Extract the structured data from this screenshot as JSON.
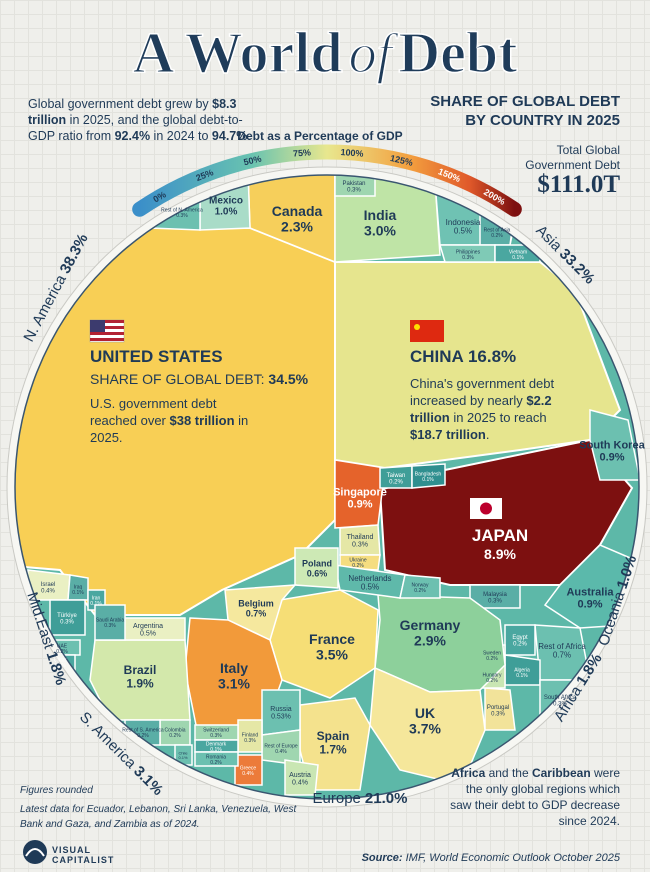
{
  "header": {
    "title_start": "A World",
    "title_of": "of",
    "title_end": "Debt",
    "intro": [
      "Global government debt grew by ",
      "$8.3 trillion",
      " in 2025, and the global debt-to-GDP ratio from ",
      "92.4%",
      " in 2024 to ",
      "94.7%",
      "."
    ],
    "subtitle": [
      "SHARE OF GLOBAL DEBT",
      "BY COUNTRY IN 2025"
    ],
    "total_label": [
      "Total Global",
      "Government Debt"
    ],
    "total_value": "$111.0T"
  },
  "scale": {
    "title": "Debt as a Percentage of GDP",
    "labels": [
      "0%",
      "25%",
      "50%",
      "75%",
      "100%",
      "125%",
      "150%",
      "200%"
    ]
  },
  "regions": [
    {
      "name": "N. America",
      "share": "38.3%"
    },
    {
      "name": "Asia",
      "share": "33.2%"
    },
    {
      "name": "Oceania",
      "share": "1.0%"
    },
    {
      "name": "Africa",
      "share": "1.8%"
    },
    {
      "name": "Europe",
      "share": "21.0%"
    },
    {
      "name": "S. America",
      "share": "3.1%"
    },
    {
      "name": "Mid.East",
      "share": "1.8%"
    }
  ],
  "highlights": {
    "us": {
      "name": "UNITED STATES",
      "share_label": "SHARE OF GLOBAL DEBT: ",
      "share": "34.5%",
      "note": [
        "U.S. government debt reached over ",
        "$38 trillion",
        " in 2025."
      ]
    },
    "china": {
      "name": "CHINA ",
      "share": "16.8%",
      "note": [
        "China's government debt increased by nearly ",
        "$2.2 trillion",
        " in 2025 to reach ",
        "$18.7 trillion",
        "."
      ]
    },
    "japan": {
      "name": "JAPAN",
      "share": "8.9%"
    }
  },
  "cells": [
    {
      "name": "Canada",
      "share": "2.3%"
    },
    {
      "name": "Mexico",
      "share": "1.0%"
    },
    {
      "name": "Rest of N. America",
      "share": "0.3%"
    },
    {
      "name": "India",
      "share": "3.0%"
    },
    {
      "name": "Pakistan",
      "share": "0.3%"
    },
    {
      "name": "Indonesia",
      "share": "0.5%"
    },
    {
      "name": "Rest of Asia",
      "share": "0.2%"
    },
    {
      "name": "Philippines",
      "share": "0.3%"
    },
    {
      "name": "Vietnam",
      "share": "0.1%"
    },
    {
      "name": "South Korea",
      "share": "0.9%"
    },
    {
      "name": "Singapore",
      "share": "0.9%"
    },
    {
      "name": "Taiwan",
      "share": "0.2%"
    },
    {
      "name": "Bangladesh",
      "share": "0.1%"
    },
    {
      "name": "Thailand",
      "share": "0.3%"
    },
    {
      "name": "Ukraine",
      "share": "0.2%"
    },
    {
      "name": "Malaysia",
      "share": "0.3%"
    },
    {
      "name": "Australia",
      "share": "0.9%"
    },
    {
      "name": "Rest of Africa",
      "share": "0.7%"
    },
    {
      "name": "Egypt",
      "share": "0.2%"
    },
    {
      "name": "Algeria",
      "share": "0.1%"
    },
    {
      "name": "South Africa",
      "share": "0.3%"
    },
    {
      "name": "Portugal",
      "share": "0.3%"
    },
    {
      "name": "Hungary",
      "share": "0.2%"
    },
    {
      "name": "Sweden",
      "share": "0.2%"
    },
    {
      "name": "Germany",
      "share": "2.9%"
    },
    {
      "name": "France",
      "share": "3.5%"
    },
    {
      "name": "UK",
      "share": "3.7%"
    },
    {
      "name": "Spain",
      "share": "1.7%"
    },
    {
      "name": "Netherlands",
      "share": "0.5%"
    },
    {
      "name": "Poland",
      "share": "0.6%"
    },
    {
      "name": "Belgium",
      "share": "0.7%"
    },
    {
      "name": "Italy",
      "share": "3.1%"
    },
    {
      "name": "Russia",
      "share": "0.53%"
    },
    {
      "name": "Rest of Europe",
      "share": "0.4%"
    },
    {
      "name": "Greece",
      "share": "0.4%"
    },
    {
      "name": "Austria",
      "share": "0.4%"
    },
    {
      "name": "Finland",
      "share": "0.3%"
    },
    {
      "name": "Switzerland",
      "share": "0.3%"
    },
    {
      "name": "Denmark",
      "share": "0.1%"
    },
    {
      "name": "Romania",
      "share": "0.2%"
    },
    {
      "name": "Norway",
      "share": "0.2%"
    },
    {
      "name": "Brazil",
      "share": "1.9%"
    },
    {
      "name": "Argentina",
      "share": "0.5%"
    },
    {
      "name": "Colombia",
      "share": "0.2%"
    },
    {
      "name": "Chile",
      "share": "0.1%"
    },
    {
      "name": "Rest of S. America",
      "share": "0.2%"
    },
    {
      "name": "Israel",
      "share": "0.4%"
    },
    {
      "name": "Iraq",
      "share": "0.1%"
    },
    {
      "name": "Iran",
      "share": "0.1%"
    },
    {
      "name": "Türkiye",
      "share": "0.3%"
    },
    {
      "name": "Saudi Arabia",
      "share": "0.3%"
    },
    {
      "name": "UAE",
      "share": "0.2%"
    },
    {
      "name": "Qatar",
      "share": "0.1%"
    }
  ],
  "footer": {
    "notes": [
      "Figures rounded",
      "Latest data for Ecuador, Lebanon, Sri Lanka, Venezuela, West Bank and Gaza, and Zambia as of 2024."
    ],
    "africa_note": [
      "Africa",
      " and the ",
      "Caribbean",
      " were the only global regions which saw their debt to GDP decrease since 2024."
    ],
    "logo": "VISUAL CAPITALIST",
    "source_label": "Source:",
    "source": " IMF, World Economic Outlook October 2025"
  }
}
